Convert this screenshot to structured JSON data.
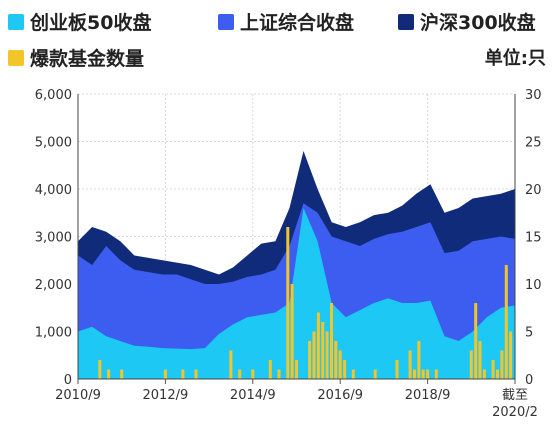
{
  "legend": {
    "items": [
      {
        "label": "创业板50收盘",
        "color": "#1EC8F5"
      },
      {
        "label": "上证综合收盘",
        "color": "#3D5CF0"
      },
      {
        "label": "沪深300收盘",
        "color": "#102B7A"
      },
      {
        "label": "爆款基金数量",
        "color": "#F2C62A"
      }
    ],
    "unit": "单位:只"
  },
  "chart_data": {
    "type": "area",
    "x_tick_labels": [
      "2010/9",
      "2012/9",
      "2014/9",
      "2016/9",
      "2018/9",
      "截至\n2020/2"
    ],
    "left_axis": {
      "ticks": [
        "0",
        "1,000",
        "2,000",
        "3,000",
        "4,000",
        "5,000",
        "6,000"
      ],
      "ylim": [
        0,
        6000
      ]
    },
    "right_axis": {
      "ticks": [
        "0",
        "5",
        "10",
        "15",
        "20",
        "25",
        "30"
      ],
      "ylim": [
        0,
        30
      ]
    },
    "grid": true,
    "series": [
      {
        "name": "沪深300收盘",
        "color": "#102B7A",
        "values": [
          2900,
          3200,
          3100,
          2900,
          2600,
          2550,
          2500,
          2450,
          2400,
          2300,
          2200,
          2350,
          2600,
          2850,
          2900,
          3600,
          4800,
          4000,
          3300,
          3200,
          3300,
          3450,
          3500,
          3650,
          3900,
          4100,
          3500,
          3600,
          3800,
          3850,
          3900,
          4000
        ]
      },
      {
        "name": "上证综合收盘",
        "color": "#3D5CF0",
        "values": [
          2600,
          2400,
          2800,
          2500,
          2300,
          2250,
          2200,
          2200,
          2100,
          2000,
          2000,
          2050,
          2150,
          2200,
          2300,
          2800,
          3700,
          3500,
          3000,
          2900,
          2800,
          2950,
          3050,
          3100,
          3200,
          3300,
          2650,
          2700,
          2900,
          2950,
          3000,
          2950
        ]
      },
      {
        "name": "创业板50收盘",
        "color": "#1EC8F5",
        "values": [
          1000,
          1100,
          900,
          800,
          700,
          680,
          650,
          640,
          630,
          650,
          950,
          1150,
          1300,
          1350,
          1400,
          1600,
          3600,
          2900,
          1600,
          1300,
          1450,
          1600,
          1700,
          1600,
          1600,
          1650,
          900,
          800,
          1000,
          1300,
          1500,
          1550
        ]
      },
      {
        "name": "爆款基金数量",
        "color": "#F2C62A",
        "axis": "right",
        "points": [
          [
            0.05,
            2
          ],
          [
            0.07,
            1
          ],
          [
            0.1,
            1
          ],
          [
            0.2,
            1
          ],
          [
            0.24,
            1
          ],
          [
            0.27,
            1
          ],
          [
            0.35,
            3
          ],
          [
            0.37,
            1
          ],
          [
            0.4,
            1
          ],
          [
            0.44,
            2
          ],
          [
            0.46,
            1
          ],
          [
            0.48,
            16
          ],
          [
            0.49,
            10
          ],
          [
            0.5,
            2
          ],
          [
            0.53,
            4
          ],
          [
            0.54,
            5
          ],
          [
            0.55,
            7
          ],
          [
            0.56,
            6
          ],
          [
            0.57,
            5
          ],
          [
            0.58,
            8
          ],
          [
            0.59,
            4
          ],
          [
            0.6,
            3
          ],
          [
            0.61,
            2
          ],
          [
            0.63,
            1
          ],
          [
            0.68,
            1
          ],
          [
            0.73,
            2
          ],
          [
            0.76,
            3
          ],
          [
            0.77,
            1
          ],
          [
            0.78,
            4
          ],
          [
            0.79,
            1
          ],
          [
            0.8,
            1
          ],
          [
            0.82,
            1
          ],
          [
            0.9,
            3
          ],
          [
            0.91,
            8
          ],
          [
            0.92,
            4
          ],
          [
            0.93,
            1
          ],
          [
            0.95,
            2
          ],
          [
            0.96,
            1
          ],
          [
            0.97,
            3
          ],
          [
            0.98,
            12
          ],
          [
            0.99,
            5
          ]
        ]
      }
    ]
  }
}
